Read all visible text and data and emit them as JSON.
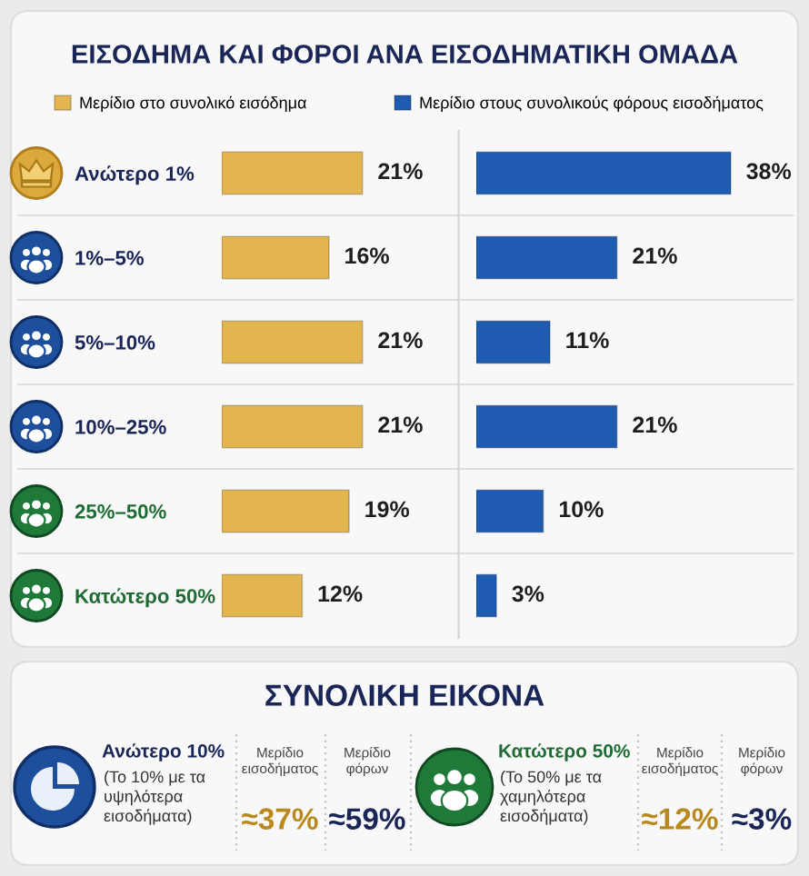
{
  "chart_data": [
    {
      "type": "bar",
      "orientation": "horizontal",
      "title": "ΕΙΣΟΔΗΜΑ ΚΑΙ ΦΟΡΟΙ ΑΝΑ ΕΙΣΟΔΗΜΑΤΙΚΗ ΟΜΑΔΑ",
      "categories": [
        "Ανώτερο 1%",
        "1%–5%",
        "5%–10%",
        "10%–25%",
        "25%–50%",
        "Κατώτερο 50%"
      ],
      "series": [
        {
          "name": "Μερίδιο στο συνολικό εισόδημα",
          "color": "#e2b54e",
          "values": [
            21,
            16,
            21,
            21,
            19,
            12
          ],
          "value_labels": [
            "21%",
            "16%",
            "21%",
            "21%",
            "19%",
            "12%"
          ]
        }
      ],
      "legend": "top",
      "tick_labels": "y"
    },
    {
      "type": "bar",
      "orientation": "horizontal",
      "categories": [
        null,
        null,
        null,
        null,
        null,
        null
      ],
      "series": [
        {
          "name": "Μερίδιο στους συνολικούς φόρους εισοδήματος",
          "color": "#1f5bb0",
          "values": [
            38,
            21,
            11,
            21,
            10,
            3
          ],
          "value_labels": [
            "38%",
            "21%",
            "11%",
            "21%",
            "10%",
            "3%"
          ]
        }
      ],
      "legend": "top",
      "tick_labels": false
    },
    {
      "type": "other",
      "title": "ΣΥΝΟΛΙΚΗ ΕΙΚΟΝΑ",
      "annotations": [
        "Ανώτερο 10%",
        "(Το 10% με τα\nυψηλότερα\nεισοδήματα)",
        "Μερίδιο\nεισοδήματος",
        "≈37%",
        "Μερίδιο\nφόρων",
        "≈59%",
        "Κατώτερο 50%",
        "(Το 50% με τα\nχαμηλότερα\nεισοδήματα)",
        "Μερίδιο\nεισοδήματος",
        "≈12%",
        "Μερίδιο\nφόρων",
        "≈3%"
      ]
    }
  ]
}
